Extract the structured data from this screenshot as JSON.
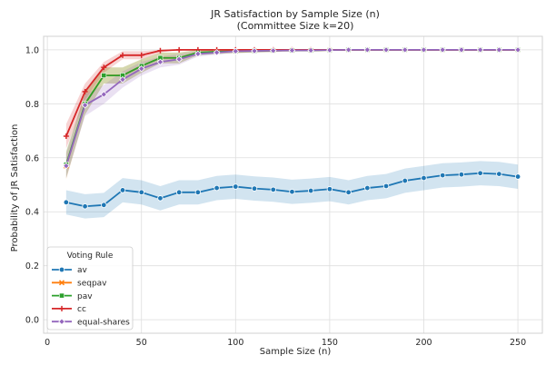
{
  "chart_data": {
    "type": "line",
    "title": "JR Satisfaction by Sample Size (n)",
    "subtitle": "(Committee Size k=20)",
    "xlabel": "Sample Size (n)",
    "ylabel": "Probability of JR Satisfaction",
    "xlim": [
      -2,
      263
    ],
    "ylim": [
      -0.05,
      1.05
    ],
    "xticks": [
      0,
      50,
      100,
      150,
      200,
      250
    ],
    "yticks": [
      0.0,
      0.2,
      0.4,
      0.6,
      0.8,
      1.0
    ],
    "grid": true,
    "legend_title": "Voting Rule",
    "legend_position": "lower-left",
    "x": [
      10,
      20,
      30,
      40,
      50,
      60,
      70,
      80,
      90,
      100,
      110,
      120,
      130,
      140,
      150,
      160,
      170,
      180,
      190,
      200,
      210,
      220,
      230,
      240,
      250
    ],
    "series": [
      {
        "name": "av",
        "color": "#1f77b4",
        "marker": "circle",
        "values": [
          0.435,
          0.42,
          0.425,
          0.48,
          0.472,
          0.45,
          0.472,
          0.472,
          0.488,
          0.493,
          0.486,
          0.482,
          0.474,
          0.478,
          0.484,
          0.472,
          0.488,
          0.495,
          0.515,
          0.525,
          0.535,
          0.538,
          0.543,
          0.54,
          0.53
        ],
        "ci_lower": [
          0.39,
          0.375,
          0.38,
          0.435,
          0.427,
          0.405,
          0.427,
          0.427,
          0.443,
          0.448,
          0.441,
          0.437,
          0.429,
          0.433,
          0.439,
          0.427,
          0.443,
          0.45,
          0.47,
          0.48,
          0.49,
          0.493,
          0.498,
          0.495,
          0.485
        ],
        "ci_upper": [
          0.48,
          0.465,
          0.47,
          0.525,
          0.517,
          0.495,
          0.517,
          0.517,
          0.533,
          0.538,
          0.531,
          0.527,
          0.519,
          0.523,
          0.529,
          0.517,
          0.533,
          0.54,
          0.56,
          0.57,
          0.58,
          0.583,
          0.588,
          0.585,
          0.575
        ]
      },
      {
        "name": "seqpav",
        "color": "#ff7f0e",
        "marker": "x",
        "values": [
          0.57,
          0.8,
          0.905,
          0.905,
          0.94,
          0.97,
          0.97,
          0.99,
          0.993,
          0.995,
          0.996,
          0.997,
          0.998,
          0.998,
          0.999,
          1.0,
          1.0,
          1.0,
          1.0,
          1.0,
          1.0,
          1.0,
          1.0,
          1.0,
          1.0
        ],
        "ci_lower": [
          0.52,
          0.76,
          0.875,
          0.875,
          0.915,
          0.95,
          0.95,
          0.98,
          0.985,
          0.988,
          0.99,
          0.992,
          0.994,
          0.995,
          0.997,
          1.0,
          1.0,
          1.0,
          1.0,
          1.0,
          1.0,
          1.0,
          1.0,
          1.0,
          1.0
        ],
        "ci_upper": [
          0.62,
          0.84,
          0.935,
          0.935,
          0.965,
          0.99,
          0.99,
          1.0,
          1.0,
          1.0,
          1.0,
          1.0,
          1.0,
          1.0,
          1.0,
          1.0,
          1.0,
          1.0,
          1.0,
          1.0,
          1.0,
          1.0,
          1.0,
          1.0,
          1.0
        ]
      },
      {
        "name": "pav",
        "color": "#2ca02c",
        "marker": "square",
        "values": [
          0.575,
          0.8,
          0.905,
          0.905,
          0.94,
          0.97,
          0.97,
          0.99,
          0.993,
          0.995,
          0.996,
          0.997,
          0.998,
          0.998,
          0.999,
          1.0,
          1.0,
          1.0,
          1.0,
          1.0,
          1.0,
          1.0,
          1.0,
          1.0,
          1.0
        ],
        "ci_lower": [
          0.525,
          0.76,
          0.875,
          0.875,
          0.915,
          0.95,
          0.95,
          0.98,
          0.985,
          0.988,
          0.99,
          0.992,
          0.994,
          0.995,
          0.997,
          1.0,
          1.0,
          1.0,
          1.0,
          1.0,
          1.0,
          1.0,
          1.0,
          1.0,
          1.0
        ],
        "ci_upper": [
          0.625,
          0.84,
          0.935,
          0.935,
          0.965,
          0.99,
          0.99,
          1.0,
          1.0,
          1.0,
          1.0,
          1.0,
          1.0,
          1.0,
          1.0,
          1.0,
          1.0,
          1.0,
          1.0,
          1.0,
          1.0,
          1.0,
          1.0,
          1.0,
          1.0
        ]
      },
      {
        "name": "cc",
        "color": "#d62728",
        "marker": "plus",
        "values": [
          0.68,
          0.845,
          0.935,
          0.98,
          0.98,
          0.997,
          1.0,
          1.0,
          1.0,
          1.0,
          1.0,
          1.0,
          1.0,
          1.0,
          1.0,
          1.0,
          1.0,
          1.0,
          1.0,
          1.0,
          1.0,
          1.0,
          1.0,
          1.0,
          1.0
        ],
        "ci_lower": [
          0.635,
          0.815,
          0.915,
          0.965,
          0.965,
          0.99,
          1.0,
          1.0,
          1.0,
          1.0,
          1.0,
          1.0,
          1.0,
          1.0,
          1.0,
          1.0,
          1.0,
          1.0,
          1.0,
          1.0,
          1.0,
          1.0,
          1.0,
          1.0,
          1.0
        ],
        "ci_upper": [
          0.725,
          0.875,
          0.955,
          0.995,
          0.995,
          1.0,
          1.0,
          1.0,
          1.0,
          1.0,
          1.0,
          1.0,
          1.0,
          1.0,
          1.0,
          1.0,
          1.0,
          1.0,
          1.0,
          1.0,
          1.0,
          1.0,
          1.0,
          1.0,
          1.0
        ]
      },
      {
        "name": "equal-shares",
        "color": "#9467bd",
        "marker": "diamond",
        "values": [
          0.57,
          0.795,
          0.835,
          0.89,
          0.93,
          0.955,
          0.965,
          0.985,
          0.99,
          0.995,
          0.996,
          0.997,
          0.998,
          0.998,
          0.999,
          1.0,
          1.0,
          1.0,
          1.0,
          1.0,
          1.0,
          1.0,
          1.0,
          1.0,
          1.0
        ],
        "ci_lower": [
          0.525,
          0.755,
          0.8,
          0.86,
          0.905,
          0.935,
          0.945,
          0.975,
          0.982,
          0.988,
          0.99,
          0.992,
          0.994,
          0.995,
          0.997,
          1.0,
          1.0,
          1.0,
          1.0,
          1.0,
          1.0,
          1.0,
          1.0,
          1.0,
          1.0
        ],
        "ci_upper": [
          0.615,
          0.835,
          0.87,
          0.92,
          0.955,
          0.975,
          0.985,
          0.995,
          0.998,
          1.0,
          1.0,
          1.0,
          1.0,
          1.0,
          1.0,
          1.0,
          1.0,
          1.0,
          1.0,
          1.0,
          1.0,
          1.0,
          1.0,
          1.0,
          1.0
        ]
      }
    ]
  }
}
